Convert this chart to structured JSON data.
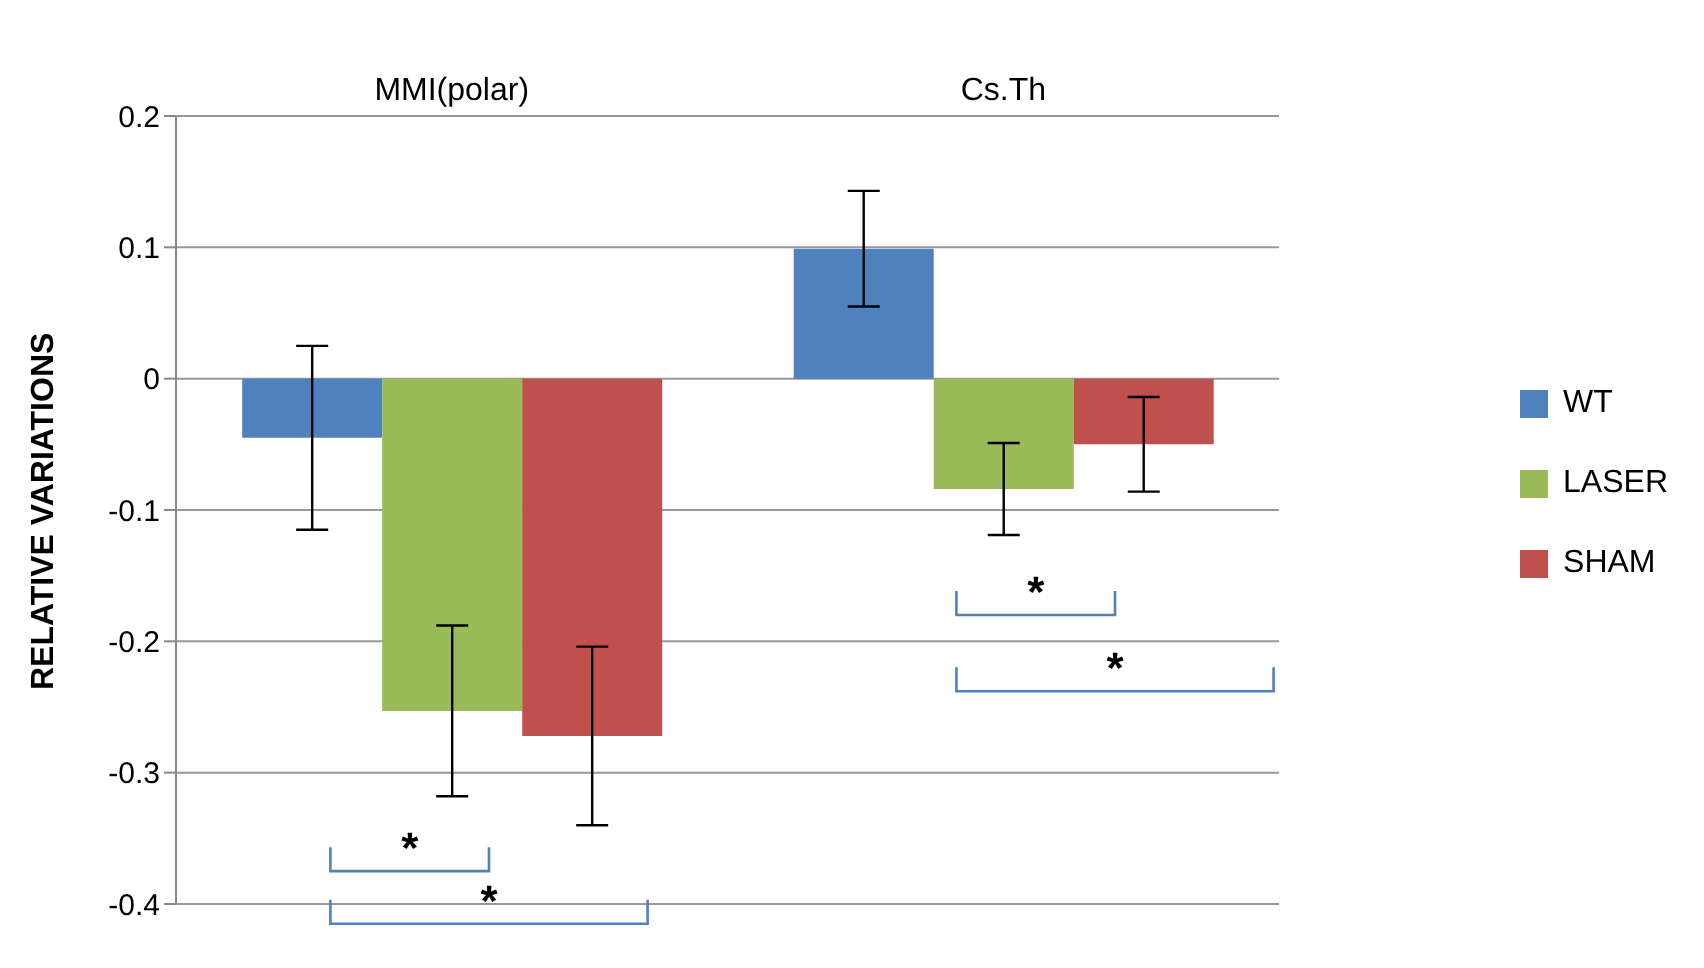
{
  "chart_data": {
    "type": "bar",
    "ylabel": "RELATIVE VARIATIONS",
    "categories": [
      "MMI(polar)",
      "Cs.Th"
    ],
    "series": [
      {
        "name": "WT",
        "color": "#4f81bd",
        "values": [
          -0.045,
          0.099
        ],
        "errors": [
          0.07,
          0.044
        ]
      },
      {
        "name": "LASER",
        "color": "#9bbb59",
        "values": [
          -0.253,
          -0.084
        ],
        "errors": [
          0.065,
          0.035
        ]
      },
      {
        "name": "SHAM",
        "color": "#c0504d",
        "values": [
          -0.272,
          -0.05
        ],
        "errors": [
          0.068,
          0.036
        ]
      }
    ],
    "ylim": [
      -0.4,
      0.2
    ],
    "yticks": [
      -0.4,
      -0.3,
      -0.2,
      -0.1,
      0,
      0.1,
      0.2
    ],
    "grid": "y",
    "legend": "right",
    "annotations": [
      "*",
      "*",
      "*",
      "*"
    ]
  }
}
